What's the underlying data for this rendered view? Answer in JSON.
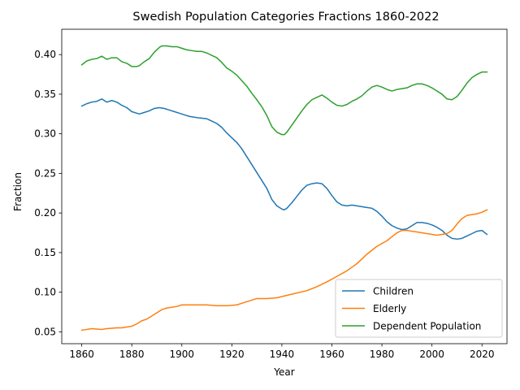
{
  "chart_data": {
    "type": "line",
    "title": "Swedish Population Categories Fractions 1860-2022",
    "xlabel": "Year",
    "ylabel": "Fraction",
    "xlim": [
      1852,
      2030
    ],
    "ylim": [
      0.035,
      0.432
    ],
    "xticks": [
      1860,
      1880,
      1900,
      1920,
      1940,
      1960,
      1980,
      2000,
      2020
    ],
    "yticks": [
      0.05,
      0.1,
      0.15,
      0.2,
      0.25,
      0.3,
      0.35,
      0.4
    ],
    "ytick_labels": [
      "0.05",
      "0.10",
      "0.15",
      "0.20",
      "0.25",
      "0.30",
      "0.35",
      "0.40"
    ],
    "grid": false,
    "legend_position": "lower right",
    "series": [
      {
        "name": "Children",
        "color": "#1f77b4",
        "points": [
          [
            1860,
            0.335
          ],
          [
            1862,
            0.338
          ],
          [
            1864,
            0.34
          ],
          [
            1866,
            0.341
          ],
          [
            1868,
            0.344
          ],
          [
            1870,
            0.34
          ],
          [
            1872,
            0.342
          ],
          [
            1874,
            0.34
          ],
          [
            1876,
            0.336
          ],
          [
            1878,
            0.333
          ],
          [
            1880,
            0.328
          ],
          [
            1882,
            0.326
          ],
          [
            1883,
            0.325
          ],
          [
            1885,
            0.327
          ],
          [
            1887,
            0.329
          ],
          [
            1889,
            0.332
          ],
          [
            1891,
            0.333
          ],
          [
            1893,
            0.332
          ],
          [
            1895,
            0.33
          ],
          [
            1897,
            0.328
          ],
          [
            1899,
            0.326
          ],
          [
            1901,
            0.324
          ],
          [
            1903,
            0.322
          ],
          [
            1905,
            0.321
          ],
          [
            1907,
            0.32
          ],
          [
            1910,
            0.319
          ],
          [
            1912,
            0.316
          ],
          [
            1914,
            0.313
          ],
          [
            1916,
            0.308
          ],
          [
            1918,
            0.301
          ],
          [
            1920,
            0.295
          ],
          [
            1922,
            0.289
          ],
          [
            1924,
            0.281
          ],
          [
            1926,
            0.271
          ],
          [
            1928,
            0.261
          ],
          [
            1930,
            0.251
          ],
          [
            1932,
            0.241
          ],
          [
            1934,
            0.231
          ],
          [
            1936,
            0.217
          ],
          [
            1938,
            0.209
          ],
          [
            1940,
            0.205
          ],
          [
            1941,
            0.204
          ],
          [
            1942,
            0.206
          ],
          [
            1944,
            0.213
          ],
          [
            1946,
            0.221
          ],
          [
            1948,
            0.229
          ],
          [
            1950,
            0.235
          ],
          [
            1952,
            0.237
          ],
          [
            1954,
            0.238
          ],
          [
            1956,
            0.237
          ],
          [
            1958,
            0.231
          ],
          [
            1960,
            0.222
          ],
          [
            1962,
            0.214
          ],
          [
            1964,
            0.21
          ],
          [
            1966,
            0.209
          ],
          [
            1968,
            0.21
          ],
          [
            1970,
            0.209
          ],
          [
            1972,
            0.208
          ],
          [
            1974,
            0.207
          ],
          [
            1976,
            0.206
          ],
          [
            1978,
            0.202
          ],
          [
            1980,
            0.196
          ],
          [
            1982,
            0.189
          ],
          [
            1984,
            0.184
          ],
          [
            1986,
            0.181
          ],
          [
            1988,
            0.179
          ],
          [
            1990,
            0.18
          ],
          [
            1992,
            0.184
          ],
          [
            1994,
            0.188
          ],
          [
            1996,
            0.188
          ],
          [
            1998,
            0.187
          ],
          [
            2000,
            0.185
          ],
          [
            2002,
            0.182
          ],
          [
            2004,
            0.178
          ],
          [
            2006,
            0.172
          ],
          [
            2008,
            0.168
          ],
          [
            2010,
            0.167
          ],
          [
            2012,
            0.168
          ],
          [
            2014,
            0.171
          ],
          [
            2016,
            0.174
          ],
          [
            2018,
            0.177
          ],
          [
            2020,
            0.178
          ],
          [
            2022,
            0.173
          ]
        ]
      },
      {
        "name": "Elderly",
        "color": "#ff7f0e",
        "points": [
          [
            1860,
            0.052
          ],
          [
            1864,
            0.054
          ],
          [
            1868,
            0.053
          ],
          [
            1870,
            0.054
          ],
          [
            1874,
            0.055
          ],
          [
            1876,
            0.055
          ],
          [
            1878,
            0.056
          ],
          [
            1880,
            0.057
          ],
          [
            1882,
            0.06
          ],
          [
            1884,
            0.064
          ],
          [
            1886,
            0.066
          ],
          [
            1888,
            0.07
          ],
          [
            1890,
            0.074
          ],
          [
            1892,
            0.078
          ],
          [
            1894,
            0.08
          ],
          [
            1896,
            0.081
          ],
          [
            1898,
            0.082
          ],
          [
            1900,
            0.084
          ],
          [
            1902,
            0.084
          ],
          [
            1906,
            0.084
          ],
          [
            1910,
            0.084
          ],
          [
            1914,
            0.083
          ],
          [
            1918,
            0.083
          ],
          [
            1922,
            0.084
          ],
          [
            1926,
            0.088
          ],
          [
            1930,
            0.092
          ],
          [
            1934,
            0.092
          ],
          [
            1938,
            0.093
          ],
          [
            1942,
            0.096
          ],
          [
            1946,
            0.099
          ],
          [
            1950,
            0.102
          ],
          [
            1954,
            0.107
          ],
          [
            1958,
            0.113
          ],
          [
            1962,
            0.12
          ],
          [
            1966,
            0.127
          ],
          [
            1970,
            0.136
          ],
          [
            1974,
            0.148
          ],
          [
            1978,
            0.158
          ],
          [
            1982,
            0.165
          ],
          [
            1986,
            0.175
          ],
          [
            1988,
            0.178
          ],
          [
            1990,
            0.178
          ],
          [
            1994,
            0.176
          ],
          [
            1998,
            0.174
          ],
          [
            2002,
            0.172
          ],
          [
            2006,
            0.174
          ],
          [
            2008,
            0.178
          ],
          [
            2010,
            0.186
          ],
          [
            2012,
            0.193
          ],
          [
            2014,
            0.197
          ],
          [
            2018,
            0.199
          ],
          [
            2020,
            0.201
          ],
          [
            2022,
            0.204
          ]
        ]
      },
      {
        "name": "Dependent Population",
        "color": "#2ca02c",
        "points": [
          [
            1860,
            0.387
          ],
          [
            1862,
            0.392
          ],
          [
            1864,
            0.394
          ],
          [
            1866,
            0.395
          ],
          [
            1868,
            0.398
          ],
          [
            1870,
            0.394
          ],
          [
            1872,
            0.396
          ],
          [
            1874,
            0.396
          ],
          [
            1876,
            0.391
          ],
          [
            1878,
            0.389
          ],
          [
            1880,
            0.385
          ],
          [
            1882,
            0.385
          ],
          [
            1883,
            0.386
          ],
          [
            1885,
            0.391
          ],
          [
            1887,
            0.395
          ],
          [
            1889,
            0.403
          ],
          [
            1891,
            0.409
          ],
          [
            1892,
            0.411
          ],
          [
            1894,
            0.411
          ],
          [
            1896,
            0.41
          ],
          [
            1898,
            0.41
          ],
          [
            1900,
            0.408
          ],
          [
            1902,
            0.406
          ],
          [
            1904,
            0.405
          ],
          [
            1906,
            0.404
          ],
          [
            1908,
            0.404
          ],
          [
            1910,
            0.402
          ],
          [
            1912,
            0.399
          ],
          [
            1914,
            0.396
          ],
          [
            1916,
            0.39
          ],
          [
            1918,
            0.383
          ],
          [
            1920,
            0.379
          ],
          [
            1922,
            0.374
          ],
          [
            1924,
            0.367
          ],
          [
            1926,
            0.36
          ],
          [
            1928,
            0.351
          ],
          [
            1930,
            0.343
          ],
          [
            1932,
            0.334
          ],
          [
            1934,
            0.323
          ],
          [
            1936,
            0.309
          ],
          [
            1938,
            0.302
          ],
          [
            1940,
            0.299
          ],
          [
            1941,
            0.299
          ],
          [
            1942,
            0.302
          ],
          [
            1944,
            0.311
          ],
          [
            1946,
            0.32
          ],
          [
            1948,
            0.329
          ],
          [
            1950,
            0.337
          ],
          [
            1952,
            0.343
          ],
          [
            1954,
            0.346
          ],
          [
            1956,
            0.349
          ],
          [
            1958,
            0.345
          ],
          [
            1960,
            0.34
          ],
          [
            1962,
            0.336
          ],
          [
            1964,
            0.335
          ],
          [
            1966,
            0.337
          ],
          [
            1968,
            0.341
          ],
          [
            1970,
            0.344
          ],
          [
            1972,
            0.348
          ],
          [
            1974,
            0.354
          ],
          [
            1976,
            0.359
          ],
          [
            1978,
            0.361
          ],
          [
            1980,
            0.359
          ],
          [
            1982,
            0.356
          ],
          [
            1984,
            0.354
          ],
          [
            1986,
            0.356
          ],
          [
            1988,
            0.357
          ],
          [
            1990,
            0.358
          ],
          [
            1992,
            0.361
          ],
          [
            1994,
            0.363
          ],
          [
            1996,
            0.363
          ],
          [
            1998,
            0.361
          ],
          [
            2000,
            0.358
          ],
          [
            2002,
            0.354
          ],
          [
            2004,
            0.35
          ],
          [
            2006,
            0.344
          ],
          [
            2008,
            0.343
          ],
          [
            2010,
            0.347
          ],
          [
            2012,
            0.355
          ],
          [
            2014,
            0.364
          ],
          [
            2016,
            0.371
          ],
          [
            2018,
            0.375
          ],
          [
            2020,
            0.378
          ],
          [
            2022,
            0.378
          ]
        ]
      }
    ]
  }
}
